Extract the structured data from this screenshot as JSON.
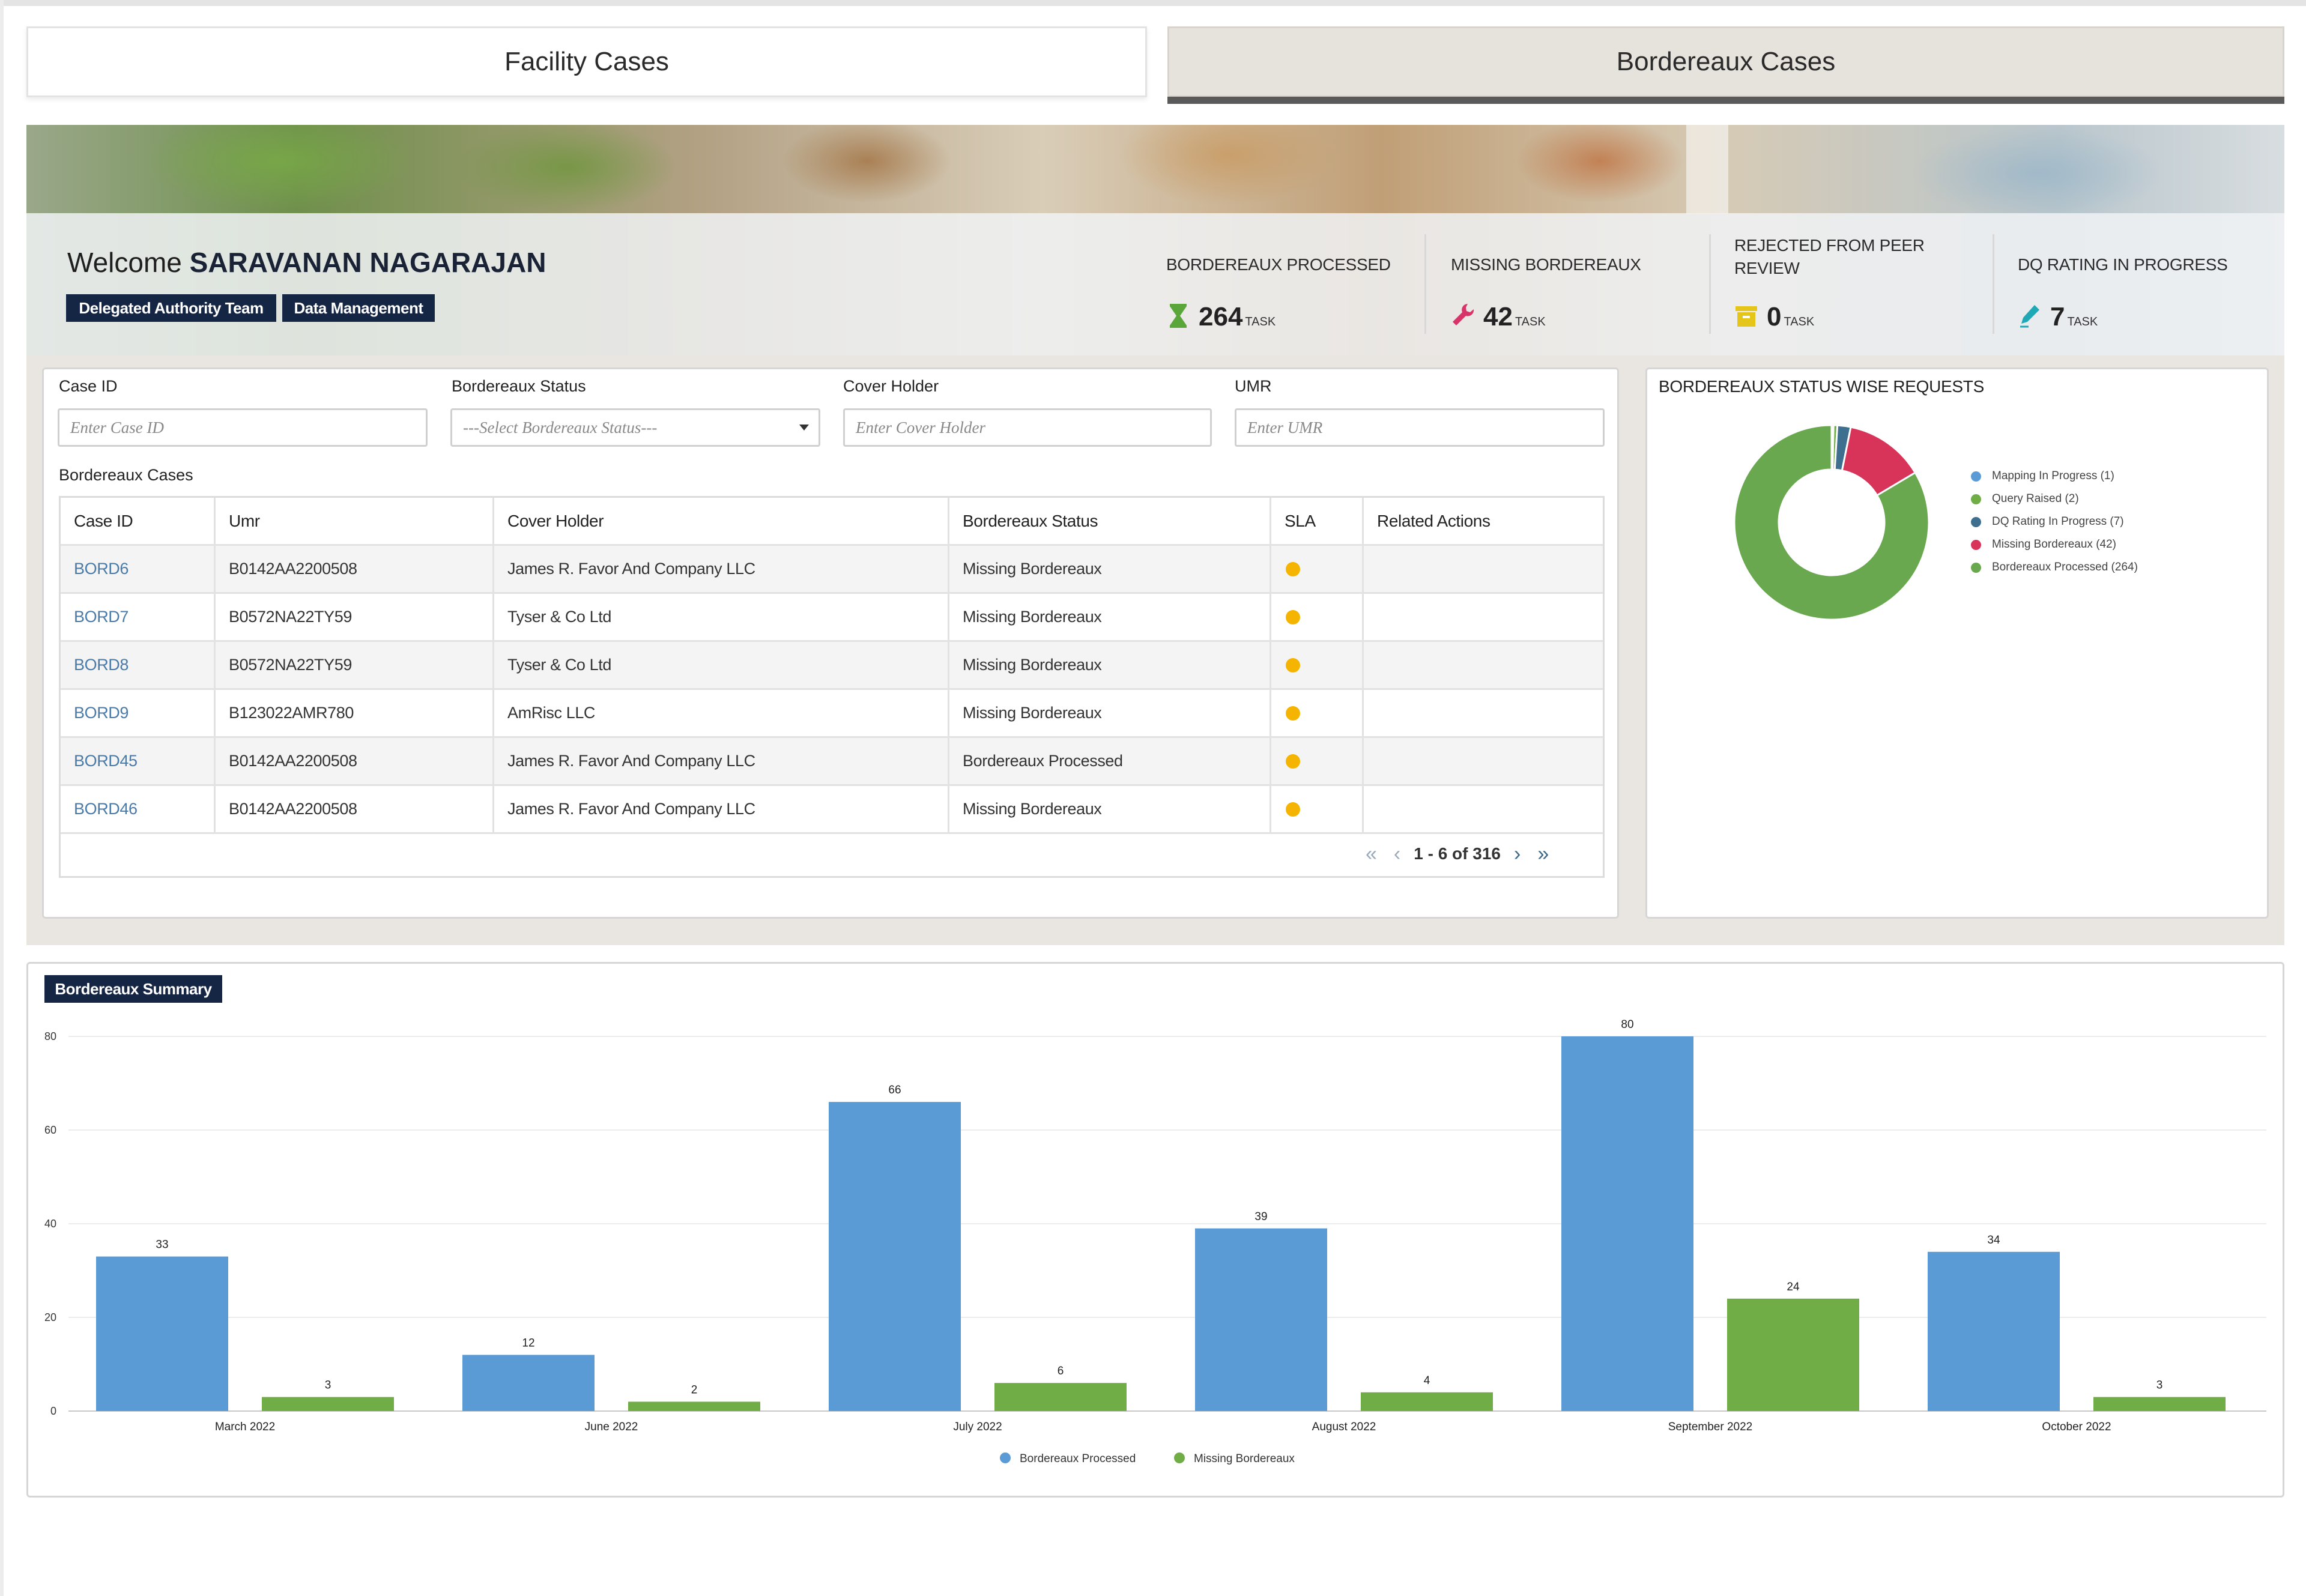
{
  "tabs": [
    {
      "label": "Facility Cases",
      "active": false
    },
    {
      "label": "Bordereaux Cases",
      "active": true
    }
  ],
  "welcome": {
    "prefix": "Welcome",
    "user_name": "SARAVANAN NAGARAJAN",
    "chips": [
      "Delegated Authority Team",
      "Data Management"
    ]
  },
  "stats": [
    {
      "label": "BORDEREAUX PROCESSED",
      "value": "264",
      "unit": "TASK",
      "icon": "hourglass-icon",
      "color": "#5aa63a"
    },
    {
      "label": "MISSING BORDEREAUX",
      "value": "42",
      "unit": "TASK",
      "icon": "wrench-icon",
      "color": "#d8346a"
    },
    {
      "label": "REJECTED FROM PEER REVIEW",
      "value": "0",
      "unit": "TASK",
      "icon": "archive-icon",
      "color": "#e6c51a"
    },
    {
      "label": "DQ RATING IN PROGRESS",
      "value": "7",
      "unit": "TASK",
      "icon": "pen-icon",
      "color": "#1fa8b5"
    }
  ],
  "filters": [
    {
      "label": "Case ID",
      "placeholder": "Enter Case ID"
    },
    {
      "label": "Bordereaux Status",
      "placeholder": "---Select Bordereaux Status---"
    },
    {
      "label": "Cover Holder",
      "placeholder": "Enter Cover Holder"
    },
    {
      "label": "UMR",
      "placeholder": "Enter UMR"
    }
  ],
  "cases": {
    "heading": "Bordereaux Cases",
    "columns": [
      "Case ID",
      "Umr",
      "Cover Holder",
      "Bordereaux Status",
      "SLA",
      "Related Actions"
    ],
    "rows": [
      {
        "id": "BORD6",
        "umr": "B0142AA2200508",
        "holder": "James R. Favor And Company LLC",
        "status": "Missing Bordereaux"
      },
      {
        "id": "BORD7",
        "umr": "B0572NA22TY59",
        "holder": "Tyser & Co Ltd",
        "status": "Missing Bordereaux"
      },
      {
        "id": "BORD8",
        "umr": "B0572NA22TY59",
        "holder": "Tyser & Co Ltd",
        "status": "Missing Bordereaux"
      },
      {
        "id": "BORD9",
        "umr": "B123022AMR780",
        "holder": "AmRisc LLC",
        "status": "Missing Bordereaux"
      },
      {
        "id": "BORD45",
        "umr": "B0142AA2200508",
        "holder": "James R. Favor And Company LLC",
        "status": "Bordereaux Processed"
      },
      {
        "id": "BORD46",
        "umr": "B0142AA2200508",
        "holder": "James R. Favor And Company LLC",
        "status": "Missing Bordereaux"
      }
    ],
    "pagination": "1 - 6 of 316"
  },
  "colors": {
    "processed": "#5b9bd5",
    "missing": "#70ad47",
    "sla_dot": "#f4b400",
    "chip_bg": "#152544"
  },
  "chart_data": [
    {
      "type": "pie",
      "title": "BORDEREAUX STATUS WISE REQUESTS",
      "donut": true,
      "legend_position": "right",
      "slices": [
        {
          "label": "Mapping In Progress (1)",
          "value": 1,
          "color": "#5b9bd5"
        },
        {
          "label": "Query Raised (2)",
          "value": 2,
          "color": "#70ad47"
        },
        {
          "label": "DQ Rating In Progress (7)",
          "value": 7,
          "color": "#3f6f8f"
        },
        {
          "label": "Missing Bordereaux (42)",
          "value": 42,
          "color": "#d8345a"
        },
        {
          "label": "Bordereaux Processed (264)",
          "value": 264,
          "color": "#6aa84f"
        }
      ]
    },
    {
      "type": "bar",
      "title": "Bordereaux Summary",
      "categories": [
        "March 2022",
        "June 2022",
        "July 2022",
        "August 2022",
        "September 2022",
        "October 2022"
      ],
      "series": [
        {
          "name": "Bordereaux Processed",
          "values": [
            33,
            12,
            66,
            39,
            80,
            34
          ],
          "color": "#5b9bd5"
        },
        {
          "name": "Missing Bordereaux",
          "values": [
            3,
            2,
            6,
            4,
            24,
            3
          ],
          "color": "#70ad47"
        }
      ],
      "ylim": [
        0,
        80
      ],
      "yticks": [
        0,
        20,
        40,
        60,
        80
      ],
      "grid": true,
      "legend_position": "bottom"
    }
  ]
}
